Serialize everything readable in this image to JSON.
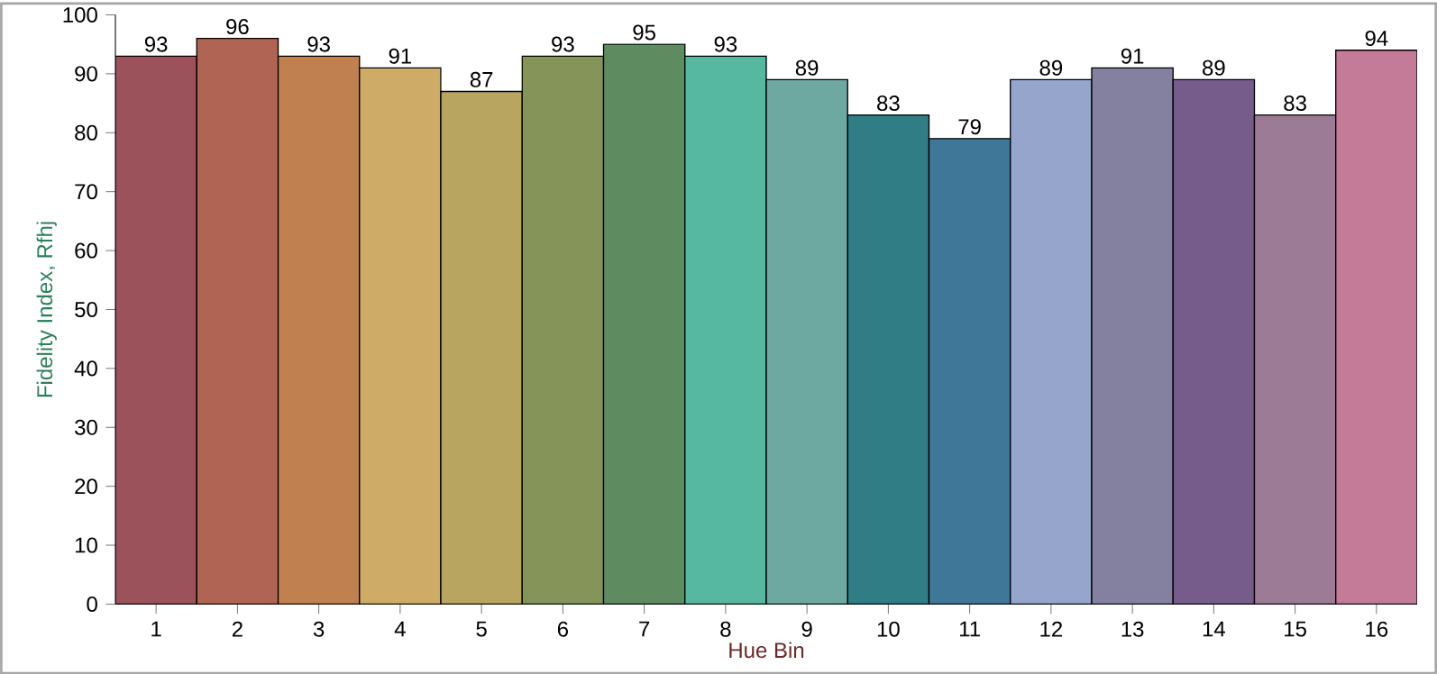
{
  "chart_data": {
    "type": "bar",
    "xlabel": "Hue Bin",
    "ylabel": "Fidelity Index, Rfhj",
    "categories": [
      "1",
      "2",
      "3",
      "4",
      "5",
      "6",
      "7",
      "8",
      "9",
      "10",
      "11",
      "12",
      "13",
      "14",
      "15",
      "16"
    ],
    "values": [
      93,
      96,
      93,
      91,
      87,
      93,
      95,
      93,
      89,
      83,
      79,
      89,
      91,
      89,
      83,
      94
    ],
    "colors": [
      "#9b525b",
      "#b06554",
      "#c0804f",
      "#cfab68",
      "#b7a560",
      "#85955a",
      "#5e8c60",
      "#56b8a0",
      "#6ea9a1",
      "#307d85",
      "#3f7798",
      "#95a5cc",
      "#8380a0",
      "#765c8a",
      "#9b7b96",
      "#c47b98"
    ],
    "ylim": [
      0,
      100
    ],
    "yticks": [
      0,
      10,
      20,
      30,
      40,
      50,
      60,
      70,
      80,
      90,
      100
    ],
    "data_labels": true
  }
}
